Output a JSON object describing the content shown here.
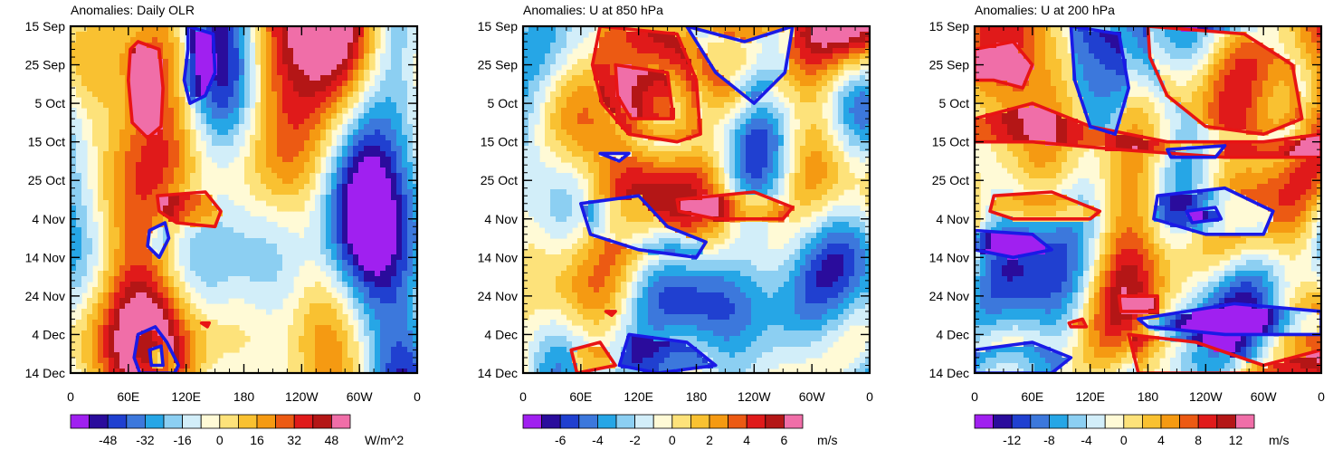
{
  "chart_data": [
    {
      "type": "heatmap",
      "title": "Anomalies: Daily OLR",
      "units": "W/m^2",
      "x_labels": [
        "0",
        "60E",
        "120E",
        "180",
        "120W",
        "60W",
        "0"
      ],
      "x_values": [
        0,
        60,
        120,
        180,
        240,
        300,
        360
      ],
      "xlim": [
        0,
        360
      ],
      "y_labels": [
        "15 Sep",
        "25 Sep",
        "5 Oct",
        "15 Oct",
        "25 Oct",
        "4 Nov",
        "14 Nov",
        "24 Nov",
        "4 Dec",
        "14 Dec"
      ],
      "y_values": [
        0,
        10,
        20,
        30,
        40,
        50,
        60,
        70,
        80,
        90
      ],
      "ylim": [
        0,
        90
      ],
      "color_levels": [
        -56,
        -48,
        -40,
        -32,
        -24,
        -16,
        -8,
        0,
        8,
        16,
        24,
        32,
        40,
        48,
        56
      ],
      "colorbar_labels": [
        "-48",
        "-32",
        "-16",
        "0",
        "16",
        "32",
        "48"
      ],
      "colorbar_values": [
        -48,
        -32,
        -16,
        0,
        16,
        32,
        48
      ],
      "contours": [
        {
          "sign": "positive",
          "points": [
            [
              70,
              4
            ],
            [
              92,
              6
            ],
            [
              96,
              16
            ],
            [
              94,
              26
            ],
            [
              80,
              29
            ],
            [
              64,
              25
            ],
            [
              60,
              14
            ],
            [
              62,
              6
            ]
          ]
        },
        {
          "sign": "negative",
          "points": [
            [
              122,
              0
            ],
            [
              148,
              2
            ],
            [
              150,
              12
            ],
            [
              140,
              18
            ],
            [
              124,
              20
            ],
            [
              118,
              14
            ],
            [
              122,
              6
            ]
          ]
        },
        {
          "sign": "positive",
          "points": [
            [
              90,
              44
            ],
            [
              140,
              43
            ],
            [
              156,
              48
            ],
            [
              150,
              52
            ],
            [
              110,
              51
            ],
            [
              92,
              48
            ]
          ]
        },
        {
          "sign": "negative",
          "points": [
            [
              82,
              53
            ],
            [
              98,
              51
            ],
            [
              102,
              55
            ],
            [
              92,
              60
            ],
            [
              80,
              57
            ]
          ]
        },
        {
          "sign": "positive",
          "points": [
            [
              136,
              77
            ],
            [
              144,
              77
            ],
            [
              142,
              78
            ]
          ]
        },
        {
          "sign": "negative",
          "points": [
            [
              70,
              80
            ],
            [
              88,
              78
            ],
            [
              100,
              82
            ],
            [
              112,
              88
            ],
            [
              108,
              90
            ],
            [
              72,
              90
            ],
            [
              66,
              86
            ]
          ]
        },
        {
          "sign": "negative",
          "points": [
            [
              82,
              84
            ],
            [
              94,
              83
            ],
            [
              96,
              88
            ],
            [
              84,
              88
            ]
          ]
        }
      ]
    },
    {
      "type": "heatmap",
      "title": "Anomalies: U at 850 hPa",
      "units": "m/s",
      "x_labels": [
        "0",
        "60E",
        "120E",
        "180",
        "120W",
        "60W",
        "0"
      ],
      "x_values": [
        0,
        60,
        120,
        180,
        240,
        300,
        360
      ],
      "xlim": [
        0,
        360
      ],
      "y_labels": [
        "15 Sep",
        "25 Sep",
        "5 Oct",
        "15 Oct",
        "25 Oct",
        "4 Nov",
        "14 Nov",
        "24 Nov",
        "4 Dec",
        "14 Dec"
      ],
      "y_values": [
        0,
        10,
        20,
        30,
        40,
        50,
        60,
        70,
        80,
        90
      ],
      "ylim": [
        0,
        90
      ],
      "color_levels": [
        -7,
        -6,
        -5,
        -4,
        -3,
        -2,
        -1,
        0,
        1,
        2,
        3,
        4,
        5,
        6,
        7
      ],
      "colorbar_labels": [
        "-6",
        "-4",
        "-2",
        "0",
        "2",
        "4",
        "6"
      ],
      "colorbar_values": [
        -6,
        -4,
        -2,
        0,
        2,
        4,
        6
      ],
      "contours": [
        {
          "sign": "positive",
          "points": [
            [
              80,
              0
            ],
            [
              160,
              2
            ],
            [
              180,
              14
            ],
            [
              184,
              28
            ],
            [
              160,
              30
            ],
            [
              110,
              28
            ],
            [
              82,
              20
            ],
            [
              72,
              10
            ]
          ]
        },
        {
          "sign": "positive",
          "points": [
            [
              96,
              10
            ],
            [
              150,
              12
            ],
            [
              156,
              24
            ],
            [
              112,
              24
            ],
            [
              98,
              18
            ]
          ]
        },
        {
          "sign": "negative",
          "points": [
            [
              170,
              0
            ],
            [
              230,
              4
            ],
            [
              280,
              0
            ],
            [
              272,
              12
            ],
            [
              240,
              20
            ],
            [
              200,
              12
            ]
          ]
        },
        {
          "sign": "negative",
          "points": [
            [
              60,
              46
            ],
            [
              120,
              44
            ],
            [
              150,
              52
            ],
            [
              190,
              56
            ],
            [
              180,
              60
            ],
            [
              120,
              58
            ],
            [
              70,
              54
            ]
          ]
        },
        {
          "sign": "positive",
          "points": [
            [
              160,
              45
            ],
            [
              240,
              43
            ],
            [
              280,
              47
            ],
            [
              270,
              50
            ],
            [
              200,
              50
            ],
            [
              162,
              48
            ]
          ]
        },
        {
          "sign": "negative",
          "points": [
            [
              80,
              33
            ],
            [
              110,
              33
            ],
            [
              100,
              35
            ]
          ]
        },
        {
          "sign": "negative",
          "points": [
            [
              110,
              80
            ],
            [
              170,
              82
            ],
            [
              200,
              88
            ],
            [
              140,
              90
            ],
            [
              100,
              88
            ]
          ]
        },
        {
          "sign": "positive",
          "points": [
            [
              50,
              84
            ],
            [
              80,
              82
            ],
            [
              96,
              88
            ],
            [
              56,
              90
            ]
          ]
        },
        {
          "sign": "positive",
          "points": [
            [
              86,
              74
            ],
            [
              96,
              74
            ],
            [
              92,
              75
            ]
          ]
        }
      ]
    },
    {
      "type": "heatmap",
      "title": "Anomalies: U at 200 hPa",
      "units": "m/s",
      "x_labels": [
        "0",
        "60E",
        "120E",
        "180",
        "120W",
        "60W",
        "0"
      ],
      "x_values": [
        0,
        60,
        120,
        180,
        240,
        300,
        360
      ],
      "xlim": [
        0,
        360
      ],
      "y_labels": [
        "15 Sep",
        "25 Sep",
        "5 Oct",
        "15 Oct",
        "25 Oct",
        "4 Nov",
        "14 Nov",
        "24 Nov",
        "4 Dec",
        "14 Dec"
      ],
      "y_values": [
        0,
        10,
        20,
        30,
        40,
        50,
        60,
        70,
        80,
        90
      ],
      "ylim": [
        0,
        90
      ],
      "color_levels": [
        -14,
        -12,
        -10,
        -8,
        -6,
        -4,
        -2,
        0,
        2,
        4,
        6,
        8,
        10,
        12,
        14
      ],
      "colorbar_labels": [
        "-12",
        "-8",
        "-4",
        "0",
        "4",
        "8",
        "12"
      ],
      "colorbar_values": [
        -12,
        -8,
        -4,
        0,
        4,
        8,
        12
      ],
      "contours": [
        {
          "sign": "positive",
          "points": [
            [
              0,
              6
            ],
            [
              40,
              4
            ],
            [
              60,
              10
            ],
            [
              50,
              16
            ],
            [
              20,
              14
            ],
            [
              0,
              14
            ]
          ]
        },
        {
          "sign": "positive",
          "points": [
            [
              180,
              0
            ],
            [
              280,
              2
            ],
            [
              330,
              10
            ],
            [
              340,
              24
            ],
            [
              300,
              28
            ],
            [
              240,
              26
            ],
            [
              200,
              18
            ],
            [
              182,
              8
            ]
          ]
        },
        {
          "sign": "positive",
          "points": [
            [
              0,
              24
            ],
            [
              60,
              20
            ],
            [
              120,
              26
            ],
            [
              200,
              30
            ],
            [
              300,
              30
            ],
            [
              360,
              28
            ],
            [
              360,
              34
            ],
            [
              260,
              34
            ],
            [
              150,
              32
            ],
            [
              60,
              30
            ],
            [
              0,
              30
            ]
          ]
        },
        {
          "sign": "negative",
          "points": [
            [
              100,
              0
            ],
            [
              150,
              2
            ],
            [
              160,
              16
            ],
            [
              146,
              28
            ],
            [
              120,
              26
            ],
            [
              104,
              14
            ]
          ]
        },
        {
          "sign": "negative",
          "points": [
            [
              190,
              44
            ],
            [
              260,
              42
            ],
            [
              310,
              48
            ],
            [
              300,
              54
            ],
            [
              240,
              54
            ],
            [
              186,
              50
            ]
          ]
        },
        {
          "sign": "negative",
          "points": [
            [
              220,
              48
            ],
            [
              250,
              47
            ],
            [
              256,
              50
            ],
            [
              226,
              51
            ]
          ]
        },
        {
          "sign": "positive",
          "points": [
            [
              20,
              44
            ],
            [
              80,
              43
            ],
            [
              130,
              48
            ],
            [
              120,
              50
            ],
            [
              40,
              50
            ],
            [
              16,
              48
            ]
          ]
        },
        {
          "sign": "negative",
          "points": [
            [
              0,
              53
            ],
            [
              60,
              54
            ],
            [
              80,
              58
            ],
            [
              40,
              60
            ],
            [
              0,
              58
            ]
          ]
        },
        {
          "sign": "negative",
          "points": [
            [
              200,
              32
            ],
            [
              260,
              31
            ],
            [
              250,
              34
            ],
            [
              204,
              34
            ]
          ]
        },
        {
          "sign": "negative",
          "points": [
            [
              170,
              76
            ],
            [
              270,
              72
            ],
            [
              360,
              74
            ],
            [
              360,
              80
            ],
            [
              260,
              80
            ],
            [
              180,
              78
            ]
          ]
        },
        {
          "sign": "negative",
          "points": [
            [
              0,
              84
            ],
            [
              60,
              82
            ],
            [
              100,
              86
            ],
            [
              80,
              90
            ],
            [
              0,
              90
            ]
          ]
        },
        {
          "sign": "positive",
          "points": [
            [
              160,
              80
            ],
            [
              230,
              82
            ],
            [
              300,
              88
            ],
            [
              360,
              84
            ],
            [
              360,
              90
            ],
            [
              170,
              90
            ]
          ]
        },
        {
          "sign": "positive",
          "points": [
            [
              98,
              77
            ],
            [
              112,
              76
            ],
            [
              116,
              78
            ],
            [
              100,
              78
            ]
          ]
        },
        {
          "sign": "positive",
          "points": [
            [
              150,
              70
            ],
            [
              190,
              70
            ],
            [
              190,
              74
            ],
            [
              152,
              74
            ]
          ]
        }
      ]
    }
  ],
  "palette": {
    "colors": [
      "#a020f0",
      "#2a0c9c",
      "#2040d0",
      "#3c78dc",
      "#26a6e6",
      "#8ccff2",
      "#d2eef9",
      "#fffad6",
      "#fde27a",
      "#f9c131",
      "#f59a12",
      "#ec5a13",
      "#e01a1a",
      "#b41616",
      "#f06ea8"
    ],
    "positive_contour": "#e81414",
    "negative_contour": "#1a1ae6"
  }
}
